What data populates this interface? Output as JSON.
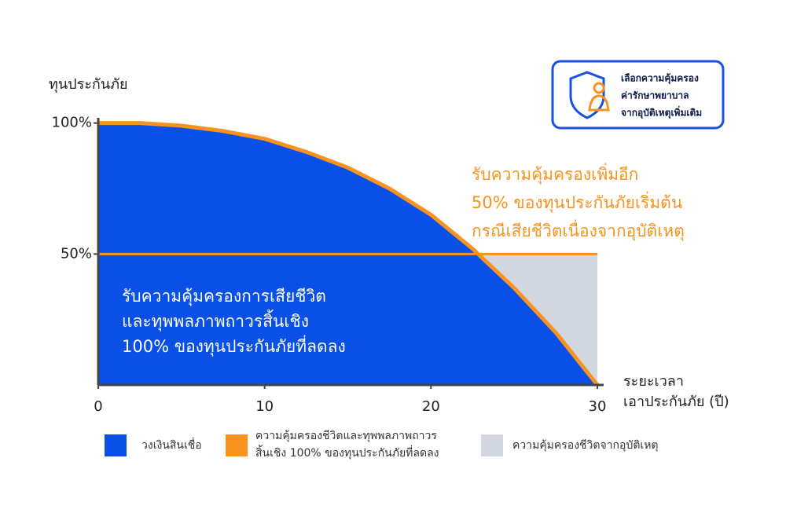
{
  "chart_data": {
    "type": "area",
    "y_axis_label": "ทุนประกันภัย",
    "x_axis_label": [
      "ระยะเวลา",
      "เอาประกันภัย (ปี)"
    ],
    "x": [
      0,
      2.5,
      5,
      7.5,
      10,
      12.5,
      15,
      17.5,
      20,
      22.5,
      25,
      27.5,
      30
    ],
    "series": [
      {
        "name": "วงเงินสินเชื่อ",
        "color": "#0a4fe6",
        "values": [
          100,
          100,
          99,
          97,
          94,
          89,
          83,
          75,
          65,
          52,
          37,
          20,
          0
        ]
      },
      {
        "name": "ความคุ้มครองชีวิตและทุพพลภาพถาวร\nสิ้นเชิง 100% ของทุนประกันภัยที่ลดลง",
        "color": "#f7931e",
        "values": [
          100,
          100,
          99,
          97,
          94,
          89,
          83,
          75,
          65,
          52,
          37,
          20,
          0
        ]
      },
      {
        "name": "ความคุ้มครองชีวิตจากอุบัติเหตุ",
        "color": "#d3d7e0",
        "values": [
          50,
          50,
          50,
          50,
          50,
          50,
          50,
          50,
          50,
          50,
          50,
          50,
          50
        ]
      }
    ],
    "xlim": [
      0,
      30
    ],
    "xticks": [
      0,
      10,
      20,
      30
    ],
    "ylim": [
      0,
      102
    ],
    "yticks": [
      {
        "value": 50,
        "label": "50%"
      },
      {
        "value": 100,
        "label": "100%"
      }
    ],
    "annotations": {
      "accident": [
        "รับความคุ้มครองเพิ่มอีก",
        "50% ของทุนประกันภัยเริ่มต้น",
        "กรณีเสียชีวิตเนื่องจากอุบัติเหตุ"
      ],
      "life": [
        "รับความคุ้มครองการเสียชีวิต",
        "และทุพพลภาพถาวรสิ้นเชิง",
        "100% ของทุนประกันภัยที่ลดลง"
      ],
      "badge": [
        "เลือกความคุ้มครอง",
        "ค่ารักษาพยาบาล",
        "จากอุบัติเหตุเพิ่มเติม"
      ]
    }
  }
}
